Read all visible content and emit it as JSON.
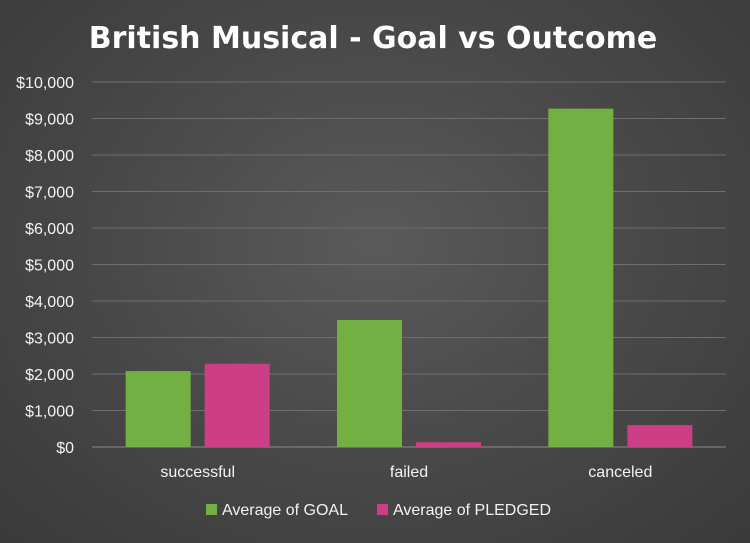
{
  "chart_data": {
    "type": "bar",
    "title": "British Musical - Goal vs Outcome",
    "categories": [
      "successful",
      "failed",
      "canceled"
    ],
    "series": [
      {
        "name": "Average of GOAL",
        "values": [
          2080,
          3480,
          9270
        ],
        "color": "#72b043"
      },
      {
        "name": "Average of PLEDGED",
        "values": [
          2280,
          130,
          600
        ],
        "color": "#cc3f87"
      }
    ],
    "ylim": [
      0,
      10000
    ],
    "yticks": [
      "$0",
      "$1,000",
      "$2,000",
      "$3,000",
      "$4,000",
      "$5,000",
      "$6,000",
      "$7,000",
      "$8,000",
      "$9,000",
      "$10,000"
    ],
    "grid": true,
    "legend_position": "bottom"
  }
}
